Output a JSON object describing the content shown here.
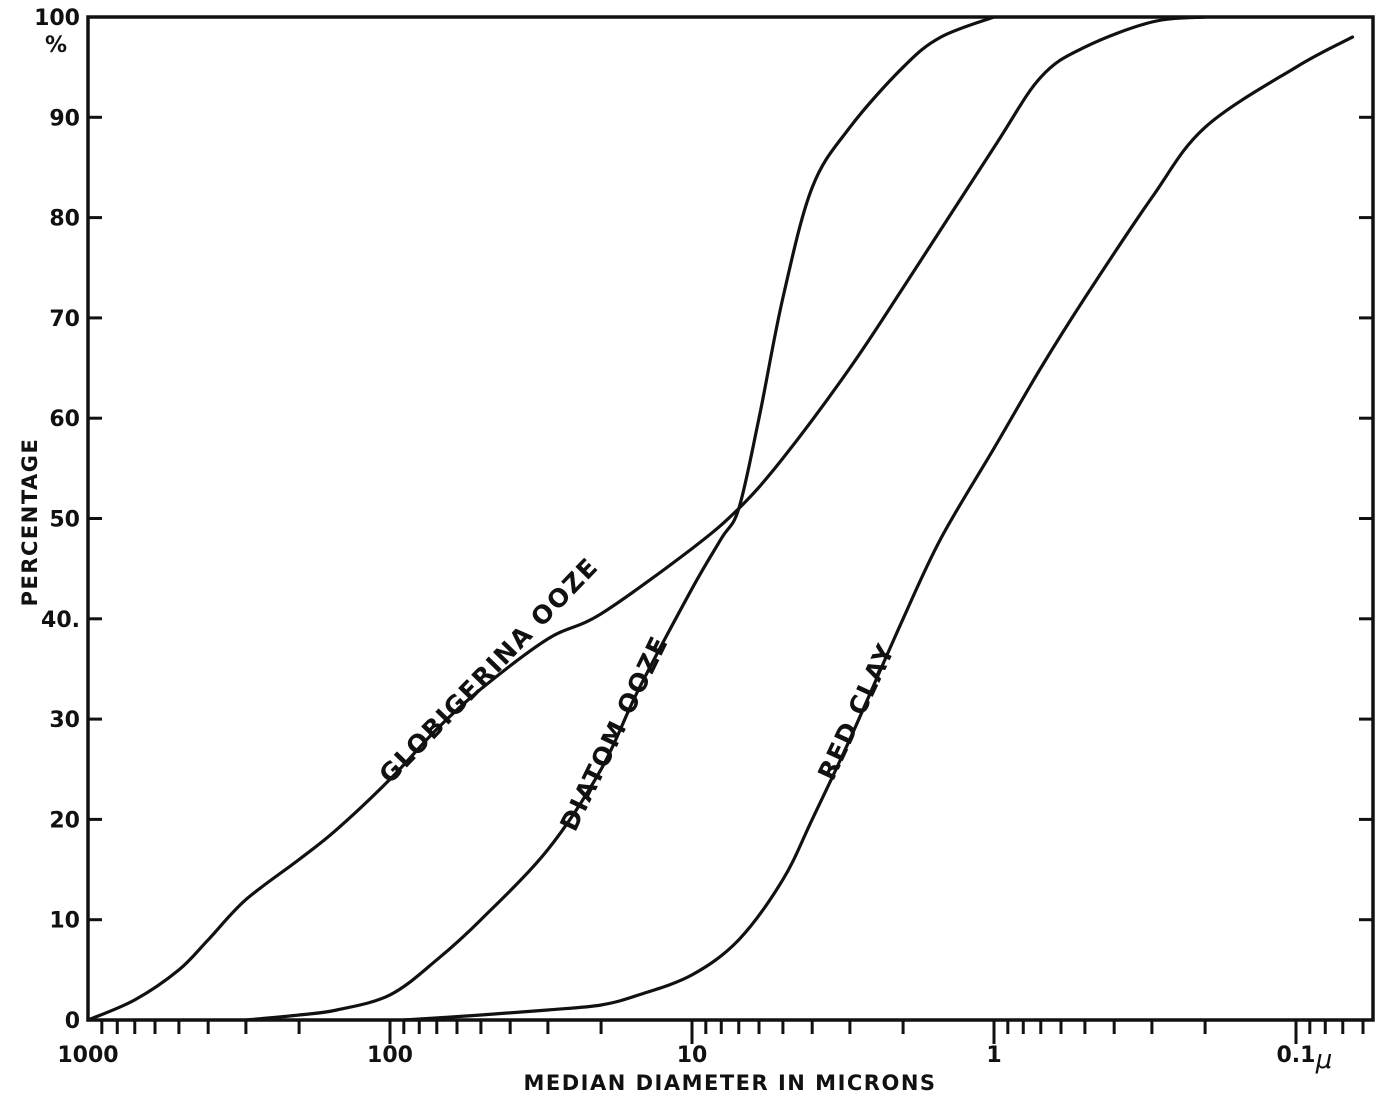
{
  "chart_data": {
    "type": "line",
    "title": "",
    "xlabel": "MEDIAN DIAMETER IN MICRONS",
    "ylabel": "PERCENTAGE",
    "x_scale": "log",
    "x_reversed": true,
    "xlim": [
      1000,
      0.065
    ],
    "ylim": [
      0,
      100
    ],
    "x_ticks": [
      {
        "value": 1000,
        "label": "1000"
      },
      {
        "value": 100,
        "label": "100"
      },
      {
        "value": 10,
        "label": "10"
      },
      {
        "value": 1,
        "label": "1"
      },
      {
        "value": 0.1,
        "label": "0.1"
      }
    ],
    "x_unit_label": "μ",
    "y_ticks": [
      0,
      10,
      20,
      30,
      40,
      50,
      60,
      70,
      80,
      90,
      100
    ],
    "y_tick_labels": [
      "0",
      "10",
      "20",
      "30",
      "40.",
      "50",
      "60",
      "70",
      "80",
      "90",
      "100"
    ],
    "y_unit_label": "%",
    "grid": false,
    "series": [
      {
        "name": "GLOBIGERINA OOZE",
        "x": [
          1000,
          700,
          500,
          400,
          300,
          200,
          150,
          100,
          70,
          50,
          30,
          20,
          10,
          7,
          5,
          3,
          2,
          1,
          0.7,
          0.5,
          0.3,
          0.2
        ],
        "y": [
          0,
          2,
          5,
          8,
          12,
          16,
          19,
          24,
          29,
          33,
          38,
          40.5,
          47,
          51,
          56,
          65,
          73,
          87,
          94,
          97,
          99.5,
          100
        ]
      },
      {
        "name": "DIATOM OOZE",
        "x": [
          300,
          200,
          150,
          100,
          70,
          50,
          30,
          20,
          15,
          10,
          8,
          7,
          6,
          5,
          4,
          3,
          2,
          1.5,
          1
        ],
        "y": [
          0,
          0.5,
          1,
          2.5,
          6,
          10,
          17,
          25,
          33,
          43,
          48,
          51,
          60,
          72,
          83,
          89,
          95,
          98,
          100
        ]
      },
      {
        "name": "RED CLAY",
        "x": [
          90,
          50,
          30,
          20,
          15,
          10,
          7,
          5,
          4,
          3,
          2,
          1.5,
          1,
          0.7,
          0.5,
          0.3,
          0.2,
          0.1,
          0.065
        ],
        "y": [
          0,
          0.5,
          1,
          1.5,
          2.5,
          4.5,
          8,
          14,
          20,
          28,
          40,
          48,
          57,
          65,
          72,
          82,
          89,
          95,
          98
        ]
      }
    ]
  }
}
